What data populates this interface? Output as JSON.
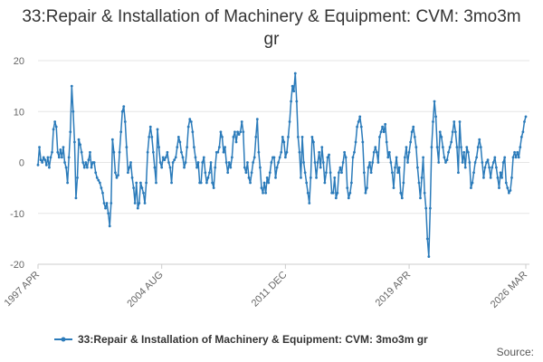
{
  "chart_data": {
    "type": "line",
    "title": "33:Repair & Installation of Machinery & Equipment: CVM: 3mo3m gr",
    "source": "Source:",
    "categories": [
      "1997 APR",
      null,
      null,
      null,
      null,
      null,
      null,
      null,
      null,
      null,
      null,
      null,
      null,
      null,
      null,
      null,
      null,
      null,
      null,
      null,
      null,
      null,
      null,
      null,
      null,
      null,
      null,
      null,
      null,
      null,
      null,
      null,
      null,
      null,
      null,
      null,
      null,
      null,
      null,
      null,
      null,
      null,
      null,
      null,
      null,
      null,
      null,
      null,
      null,
      null,
      null,
      null,
      null,
      null,
      null,
      null,
      null,
      null,
      null,
      null,
      null,
      null,
      null,
      null,
      null,
      null,
      null,
      null,
      null,
      null,
      null,
      null,
      null,
      null,
      null,
      null,
      null,
      null,
      null,
      null,
      null,
      null,
      null,
      null,
      null,
      null,
      null,
      null,
      "2004 AUG",
      null,
      null,
      null,
      null,
      null,
      null,
      null,
      null,
      null,
      null,
      null,
      null,
      null,
      null,
      null,
      null,
      null,
      null,
      null,
      null,
      null,
      null,
      null,
      null,
      null,
      null,
      null,
      null,
      null,
      null,
      null,
      null,
      null,
      null,
      null,
      null,
      null,
      null,
      null,
      null,
      null,
      null,
      null,
      null,
      null,
      null,
      null,
      null,
      null,
      null,
      null,
      null,
      null,
      null,
      null,
      null,
      null,
      null,
      null,
      null,
      null,
      null,
      null,
      null,
      null,
      null,
      null,
      null,
      null,
      null,
      null,
      null,
      null,
      null,
      null,
      null,
      null,
      null,
      null,
      null,
      null,
      null,
      null,
      null,
      null,
      null,
      null,
      "2011 DEC",
      null,
      null,
      null,
      null,
      null,
      null,
      null,
      null,
      null,
      null,
      null,
      null,
      null,
      null,
      null,
      null,
      null,
      null,
      null,
      null,
      null,
      null,
      null,
      null,
      null,
      null,
      null,
      null,
      null,
      null,
      null,
      null,
      null,
      null,
      null,
      null,
      null,
      null,
      null,
      null,
      null,
      null,
      null,
      null,
      null,
      null,
      null,
      null,
      null,
      null,
      null,
      null,
      null,
      null,
      null,
      null,
      null,
      null,
      null,
      null,
      null,
      null,
      null,
      null,
      null,
      null,
      null,
      null,
      null,
      null,
      null,
      null,
      null,
      null,
      null,
      null,
      null,
      null,
      null,
      null,
      null,
      null,
      null,
      null,
      null,
      null,
      null,
      "2019 APR",
      null,
      null,
      null,
      null,
      null,
      null,
      null,
      null,
      null,
      null,
      null,
      null,
      null,
      null,
      null,
      null,
      null,
      null,
      null,
      null,
      null,
      null,
      null,
      null,
      null,
      null,
      null,
      null,
      null,
      null,
      null,
      null,
      null,
      null,
      null,
      null,
      null,
      null,
      null,
      null,
      null,
      null,
      null,
      null,
      null,
      null,
      null,
      null,
      null,
      null,
      null,
      null,
      null,
      null,
      null,
      null,
      null,
      null,
      null,
      null,
      null,
      null,
      null,
      null,
      null,
      null,
      null,
      null,
      null,
      null,
      null,
      null,
      null,
      null,
      null,
      null,
      null,
      null,
      null,
      null,
      null,
      null,
      "2026 MAR"
    ],
    "series": [
      {
        "name": "33:Repair & Installation of Machinery & Equipment: CVM: 3mo3m gr",
        "color": "#2b7bba",
        "values": [
          -0.5,
          3,
          0.5,
          0,
          1,
          0.5,
          -0.5,
          1,
          -1,
          1,
          2,
          6.5,
          8,
          7,
          2,
          1,
          2.5,
          1,
          3,
          0,
          -1,
          -4,
          1,
          6,
          15,
          10,
          4,
          -7,
          -3,
          4.5,
          3.5,
          2,
          0,
          -1,
          0,
          -1,
          0.5,
          2,
          -1,
          0,
          0,
          -2,
          -3,
          -3.5,
          -4,
          -5,
          -6,
          -8,
          -9,
          -8,
          -10,
          -12.5,
          -8,
          4.5,
          2,
          -2,
          -3,
          -2.5,
          2,
          6,
          10,
          11,
          8,
          3,
          -2,
          -1,
          0,
          -3,
          -5,
          -8,
          -4,
          -9,
          -8,
          -4,
          -5,
          -6,
          -8,
          -4,
          2,
          5,
          7,
          5,
          2,
          -1,
          -4,
          6.5,
          3,
          0,
          -1,
          1,
          0.5,
          1,
          2,
          0,
          -1,
          -4,
          0,
          0.5,
          1,
          3,
          5,
          4,
          2,
          1,
          -1,
          0,
          3,
          7,
          8.5,
          8,
          6,
          3,
          1,
          -1,
          0,
          -4,
          -4,
          0,
          1,
          -2,
          -4,
          -3,
          -2,
          0,
          -4,
          -5,
          -1,
          2,
          2,
          3,
          6,
          5,
          2,
          3,
          0,
          -2,
          0,
          -1,
          1,
          5,
          6,
          4,
          6,
          5.5,
          6,
          8,
          6,
          -1,
          -2,
          0,
          -3,
          -4,
          -2,
          0,
          1,
          5,
          8.5,
          2,
          -1,
          -5,
          -6,
          -4,
          -6,
          -3,
          -4,
          -2,
          0,
          1,
          1,
          -3,
          -1,
          0,
          1,
          2,
          5,
          4,
          1,
          2,
          5,
          8,
          12,
          15,
          14,
          17.5,
          12,
          5,
          2,
          -3,
          5,
          0,
          -2,
          -4,
          -6,
          -8,
          -3,
          5,
          4,
          0,
          -3,
          0,
          2,
          -1,
          3,
          0,
          -4,
          -2,
          1,
          1.5,
          -2,
          -6,
          -6,
          -3,
          -7,
          -6,
          -2,
          -1,
          -2,
          0,
          2,
          1,
          -5,
          -7,
          -6,
          -4,
          1,
          2,
          4,
          7,
          8,
          9,
          7,
          4,
          -2,
          -6,
          -5,
          -1,
          0,
          -2,
          0,
          2,
          3,
          2,
          0,
          5,
          6,
          7,
          6,
          7.5,
          4,
          1,
          2,
          0,
          -2,
          -5,
          -1,
          1,
          -2,
          -1,
          -6,
          -7,
          -4,
          1,
          3,
          0,
          2,
          4,
          6,
          7,
          5,
          3,
          -1,
          -4,
          -7,
          -3,
          1,
          -6,
          -9,
          -15,
          -18.5,
          -9,
          3,
          8,
          12,
          9,
          3,
          0,
          6,
          5,
          3,
          1,
          0,
          0.5,
          2,
          3,
          4,
          6,
          8,
          6,
          3,
          -2,
          8,
          3,
          0,
          2,
          -1,
          3,
          2,
          0,
          -5,
          -4,
          -2,
          0,
          1,
          3,
          4.5,
          3,
          0,
          -3,
          -1,
          0,
          0.5,
          -1,
          -3,
          -1,
          0,
          1,
          -1,
          -3,
          -5,
          -2,
          -3,
          0,
          1,
          -4,
          -5,
          -6,
          -5.5,
          -3,
          1,
          2,
          1,
          2,
          1,
          3,
          5,
          6,
          8,
          9
        ]
      }
    ],
    "ylim": [
      -20,
      20
    ],
    "yticks": [
      -20,
      -10,
      0,
      10,
      20
    ],
    "grid": true
  }
}
